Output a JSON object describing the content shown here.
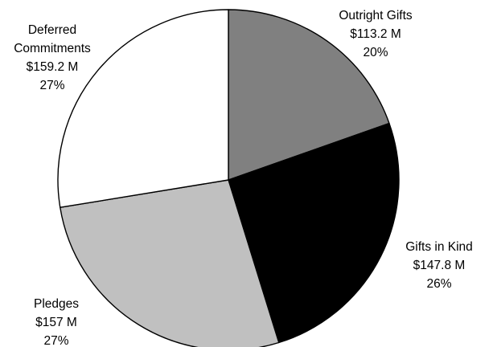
{
  "chart_data": {
    "type": "pie",
    "title": "",
    "slices": [
      {
        "label": "Outright Gifts",
        "amount": "$113.2 M",
        "value": 113.2,
        "percent_label": "20%",
        "color": "#808080",
        "lines": [
          "Outright Gifts",
          "$113.2 M",
          "20%"
        ]
      },
      {
        "label": "Gifts in Kind",
        "amount": "$147.8 M",
        "value": 147.8,
        "percent_label": "26%",
        "color": "#000000",
        "lines": [
          "Gifts in Kind",
          "$147.8 M",
          "26%"
        ]
      },
      {
        "label": "Pledges",
        "amount": "$157 M",
        "value": 157.0,
        "percent_label": "27%",
        "color": "#c0c0c0",
        "lines": [
          "Pledges",
          "$157 M",
          "27%"
        ]
      },
      {
        "label": "Deferred Commitments",
        "amount": "$159.2 M",
        "value": 159.2,
        "percent_label": "27%",
        "color": "#ffffff",
        "lines": [
          "Deferred",
          "Commitments",
          "$159.2 M",
          "27%"
        ]
      }
    ],
    "start_angle": "12 o'clock",
    "direction": "clockwise",
    "legend": "none"
  }
}
